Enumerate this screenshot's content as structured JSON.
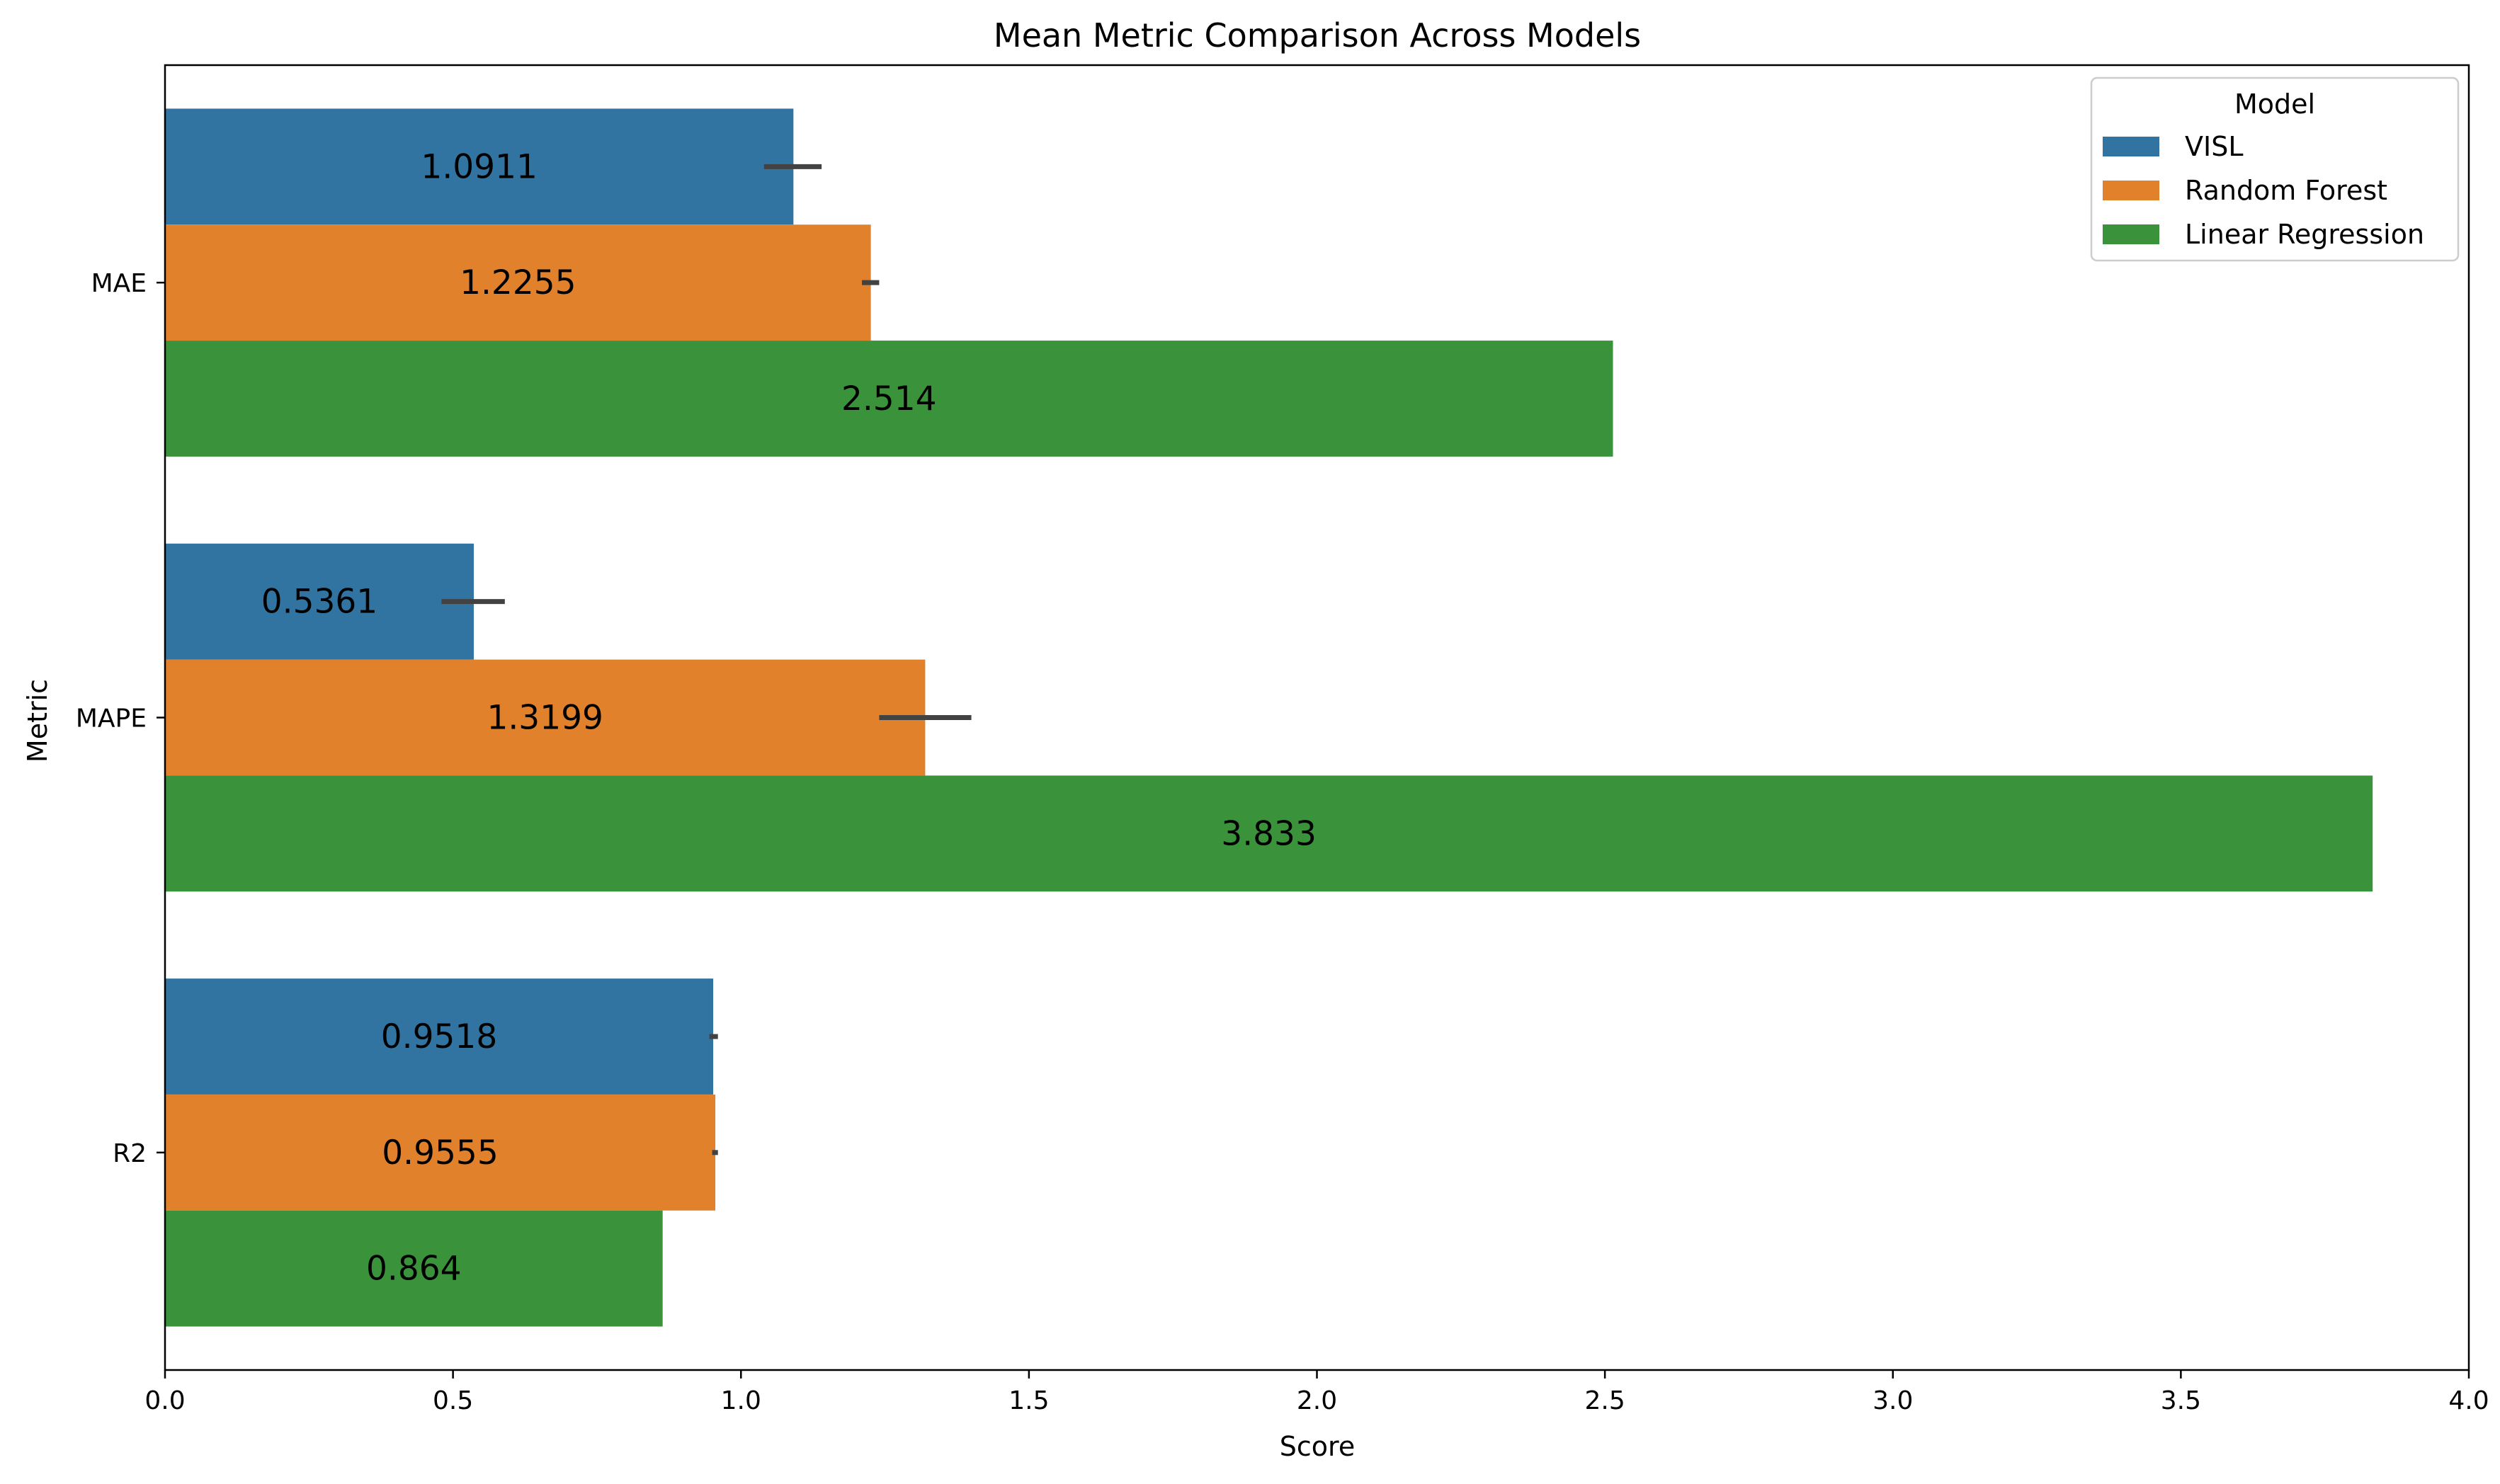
{
  "chart_data": {
    "type": "bar",
    "orientation": "horizontal",
    "title": "Mean Metric Comparison Across Models",
    "xlabel": "Score",
    "ylabel": "Metric",
    "xlim": [
      0,
      4.0
    ],
    "xticks": [
      0.0,
      0.5,
      1.0,
      1.5,
      2.0,
      2.5,
      3.0,
      3.5,
      4.0
    ],
    "xtick_labels": [
      "0.0",
      "0.5",
      "1.0",
      "1.5",
      "2.0",
      "2.5",
      "3.0",
      "3.5",
      "4.0"
    ],
    "categories": [
      "MAE",
      "MAPE",
      "R2"
    ],
    "legend": {
      "title": "Model",
      "placement": "top-right"
    },
    "grid": false,
    "series": [
      {
        "name": "VISL",
        "color": "#3274a1",
        "values": [
          1.0911,
          0.5361,
          0.9518
        ],
        "labels": [
          "1.0911",
          "0.5361",
          "0.9518"
        ],
        "error_range": [
          [
            1.04,
            1.14
          ],
          [
            0.48,
            0.59
          ],
          [
            0.945,
            0.96
          ]
        ]
      },
      {
        "name": "Random Forest",
        "color": "#e1812c",
        "values": [
          1.2255,
          1.3199,
          0.9555
        ],
        "labels": [
          "1.2255",
          "1.3199",
          "0.9555"
        ],
        "error_range": [
          [
            1.21,
            1.24
          ],
          [
            1.24,
            1.4
          ],
          [
            0.95,
            0.96
          ]
        ]
      },
      {
        "name": "Linear Regression",
        "color": "#3a923a",
        "values": [
          2.514,
          3.833,
          0.864
        ],
        "labels": [
          "2.514",
          "3.833",
          "0.864"
        ],
        "error_range": null
      }
    ]
  }
}
